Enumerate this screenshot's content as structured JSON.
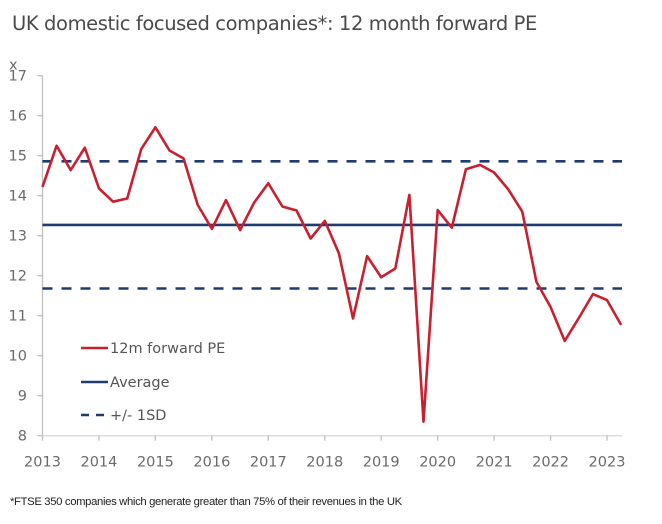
{
  "chart_data": {
    "type": "line",
    "title": "UK domestic focused companies*: 12 month forward PE",
    "ylabel": "x",
    "xlabel": "",
    "ylim": [
      8,
      17
    ],
    "xlim": [
      2013,
      2023.3
    ],
    "yticks": [
      8,
      9,
      10,
      11,
      12,
      13,
      14,
      15,
      16,
      17
    ],
    "xticks": [
      2013,
      2014,
      2015,
      2016,
      2017,
      2018,
      2019,
      2020,
      2021,
      2022,
      2023
    ],
    "grid": false,
    "legend_position": "bottom-left",
    "footnote": "*FTSE 350 companies which generate greater than 75% of their revenues in the UK",
    "series": [
      {
        "name": "12m forward PE",
        "style": "solid",
        "color": "#C8202F",
        "x": [
          2013.0,
          2013.25,
          2013.5,
          2013.75,
          2014.0,
          2014.25,
          2014.5,
          2014.75,
          2015.0,
          2015.25,
          2015.5,
          2015.75,
          2016.0,
          2016.25,
          2016.5,
          2016.75,
          2017.0,
          2017.25,
          2017.5,
          2017.75,
          2018.0,
          2018.25,
          2018.5,
          2018.75,
          2019.0,
          2019.25,
          2019.5,
          2019.75,
          2020.0,
          2020.25,
          2020.5,
          2020.75,
          2021.0,
          2021.25,
          2021.5,
          2021.75,
          2022.0,
          2022.25,
          2022.5,
          2022.75,
          2023.0,
          2023.25
        ],
        "values": [
          14.22,
          15.25,
          14.64,
          15.2,
          14.18,
          13.85,
          13.93,
          15.17,
          15.71,
          15.13,
          14.93,
          13.77,
          13.17,
          13.89,
          13.14,
          13.83,
          14.31,
          13.73,
          13.63,
          12.93,
          13.37,
          12.56,
          10.93,
          12.49,
          11.96,
          12.18,
          14.02,
          8.35,
          13.64,
          13.2,
          14.66,
          14.77,
          14.58,
          14.16,
          13.6,
          11.85,
          11.22,
          10.37,
          10.94,
          11.54,
          11.39,
          10.77
        ]
      },
      {
        "name": "Average",
        "style": "solid",
        "color": "#1F3B6F",
        "values": [
          13.27
        ]
      },
      {
        "name": "+/- 1SD",
        "style": "dashed",
        "color": "#1F3B6F",
        "values": [
          14.86,
          11.68
        ]
      }
    ]
  }
}
